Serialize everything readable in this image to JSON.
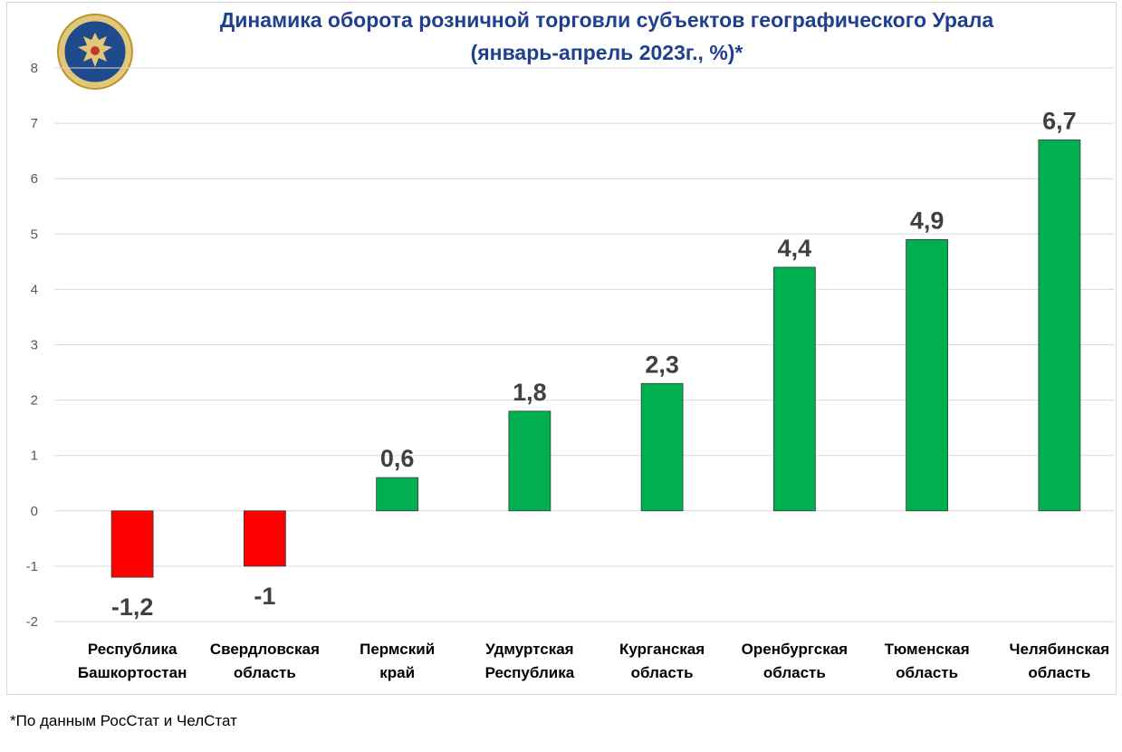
{
  "chart_data": {
    "type": "bar",
    "title": "Динамика оборота розничной торговли субъектов географического Урала",
    "subtitle": "(январь-апрель 2023г., %)*",
    "categories": [
      [
        "Республика",
        "Башкортостан"
      ],
      [
        "Свердловская",
        "область"
      ],
      [
        "Пермский",
        "край"
      ],
      [
        "Удмуртская",
        "Республика"
      ],
      [
        "Курганская",
        "область"
      ],
      [
        "Оренбургская",
        "область"
      ],
      [
        "Тюменская",
        "область"
      ],
      [
        "Челябинская",
        "область"
      ]
    ],
    "values": [
      -1.2,
      -1,
      0.6,
      1.8,
      2.3,
      4.4,
      4.9,
      6.7
    ],
    "data_labels": [
      "-1,2",
      "-1",
      "0,6",
      "1,8",
      "2,3",
      "4,4",
      "4,9",
      "6,7"
    ],
    "ylim": [
      -2,
      8
    ],
    "yticks": [
      -2,
      -1,
      0,
      1,
      2,
      3,
      4,
      5,
      6,
      7,
      8
    ],
    "grid": true,
    "xlabel": "",
    "ylabel": "",
    "colors": {
      "positive": "#00b050",
      "negative": "#ff0000",
      "title": "#1f3f8f",
      "grid": "#d9d9d9"
    }
  },
  "footnote": "*По данным РосСтат и ЧелСтат",
  "emblem": {
    "icon": "double-headed-eagle-emblem-icon"
  }
}
